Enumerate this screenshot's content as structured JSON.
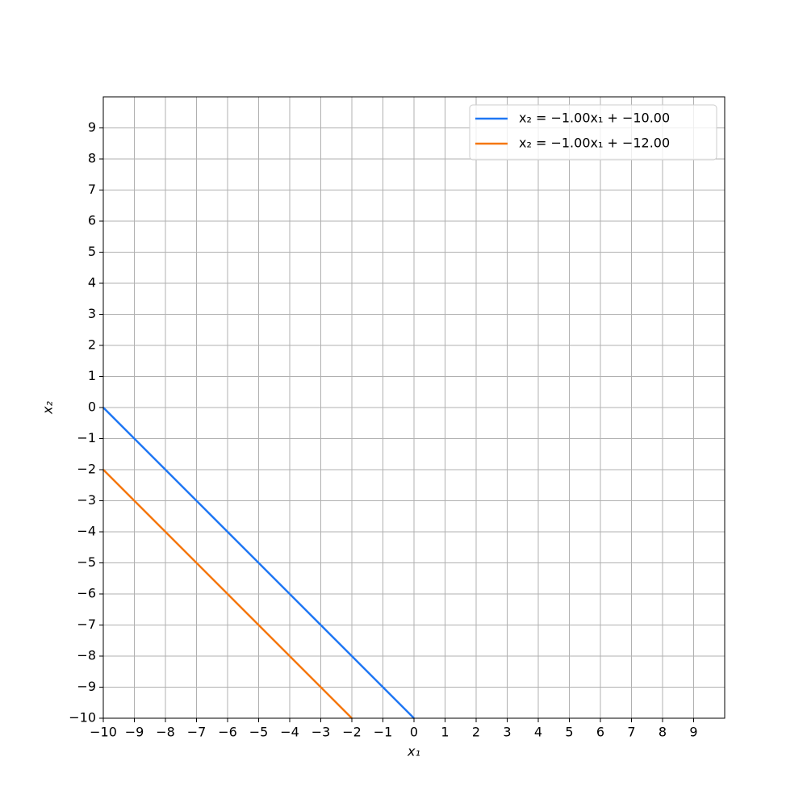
{
  "chart_data": {
    "type": "line",
    "xlabel": "x₁",
    "ylabel": "x₂",
    "series": [
      {
        "name": "x₂ = −1.00x₁ + −10.00",
        "color": "#1f77f4",
        "x": [
          -10,
          0
        ],
        "values": [
          0,
          -10
        ]
      },
      {
        "name": "x₂ = −1.00x₁ + −12.00",
        "color": "#f5770f",
        "x": [
          -10,
          -2
        ],
        "values": [
          -2,
          -10
        ]
      }
    ],
    "xlim": [
      -10,
      10
    ],
    "ylim": [
      -10,
      10
    ],
    "xticks": [
      {
        "value": -10,
        "label": "−10"
      },
      {
        "value": -9,
        "label": "−9"
      },
      {
        "value": -8,
        "label": "−8"
      },
      {
        "value": -7,
        "label": "−7"
      },
      {
        "value": -6,
        "label": "−6"
      },
      {
        "value": -5,
        "label": "−5"
      },
      {
        "value": -4,
        "label": "−4"
      },
      {
        "value": -3,
        "label": "−3"
      },
      {
        "value": -2,
        "label": "−2"
      },
      {
        "value": -1,
        "label": "−1"
      },
      0,
      1,
      2,
      3,
      4,
      5,
      6,
      7,
      8,
      9
    ],
    "yticks": [
      {
        "value": -10,
        "label": "−10"
      },
      {
        "value": -9,
        "label": "−9"
      },
      {
        "value": -8,
        "label": "−8"
      },
      {
        "value": -7,
        "label": "−7"
      },
      {
        "value": -6,
        "label": "−6"
      },
      {
        "value": -5,
        "label": "−5"
      },
      {
        "value": -4,
        "label": "−4"
      },
      {
        "value": -3,
        "label": "−3"
      },
      {
        "value": -2,
        "label": "−2"
      },
      {
        "value": -1,
        "label": "−1"
      },
      0,
      1,
      2,
      3,
      4,
      5,
      6,
      7,
      8,
      9
    ],
    "grid": true,
    "legend": "upper right"
  }
}
